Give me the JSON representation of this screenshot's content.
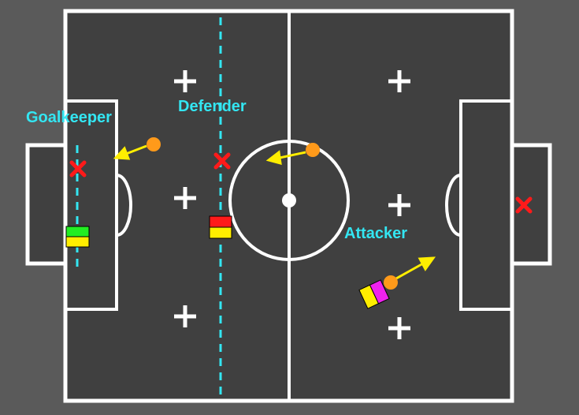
{
  "colors": {
    "background": "#5a5a5a",
    "field": "#404040",
    "lines": "#ffffff",
    "role_label": "#33e6f2",
    "ball": "#ff9a1a",
    "ball_direction_arrow": "#ffee00",
    "target_marker": "#ff1a1a",
    "goalkeeper_robot": [
      "#22ee22",
      "#ffee00"
    ],
    "defender_robot": [
      "#ff1a1a",
      "#ffee00"
    ],
    "attacker_robot": [
      "#ffee00",
      "#ee22ee"
    ]
  },
  "labels": {
    "goalkeeper": "Goalkeeper",
    "defender": "Defender",
    "attacker": "Attacker"
  },
  "icons": {
    "ball": "orange-circle",
    "target_marker": "red-x",
    "field_spot": "white-plus",
    "robot": "two-tone-rectangle"
  }
}
